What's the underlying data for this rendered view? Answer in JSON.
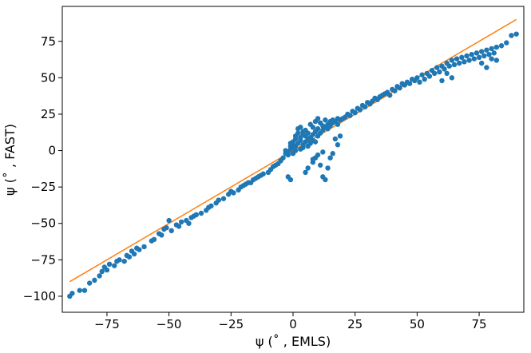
{
  "chart_data": {
    "type": "scatter",
    "xlabel": "ψ (˚ , EMLS)",
    "ylabel": "ψ (˚ , FAST)",
    "xlim": [
      -93,
      93
    ],
    "ylim": [
      -111,
      99
    ],
    "xticks": [
      -75,
      -50,
      -25,
      0,
      25,
      50,
      75
    ],
    "yticks": [
      -100,
      -75,
      -50,
      -25,
      0,
      25,
      50,
      75
    ],
    "grid": false,
    "reference_line": {
      "x": [
        -90,
        90
      ],
      "y": [
        -90,
        90
      ],
      "color": "#ff7f0e"
    },
    "point_color": "#1f77b4",
    "points": [
      [
        -90,
        -100
      ],
      [
        -89,
        -98
      ],
      [
        -86,
        -96
      ],
      [
        -84,
        -96
      ],
      [
        -82,
        -91
      ],
      [
        -80,
        -89
      ],
      [
        -78,
        -86
      ],
      [
        -77,
        -83
      ],
      [
        -76,
        -80
      ],
      [
        -75,
        -82
      ],
      [
        -74,
        -78
      ],
      [
        -72,
        -79
      ],
      [
        -71,
        -76
      ],
      [
        -70,
        -75
      ],
      [
        -68,
        -76
      ],
      [
        -67,
        -72
      ],
      [
        -66,
        -73
      ],
      [
        -65,
        -69
      ],
      [
        -64,
        -71
      ],
      [
        -63,
        -67
      ],
      [
        -62,
        -68
      ],
      [
        -60,
        -66
      ],
      [
        -57,
        -62
      ],
      [
        -56,
        -61
      ],
      [
        -54,
        -57
      ],
      [
        -53,
        -58
      ],
      [
        -52,
        -54
      ],
      [
        -51,
        -53
      ],
      [
        -50,
        -48
      ],
      [
        -49,
        -55
      ],
      [
        -47,
        -51
      ],
      [
        -46,
        -52
      ],
      [
        -45,
        -49
      ],
      [
        -43,
        -48
      ],
      [
        -42,
        -50
      ],
      [
        -41,
        -46
      ],
      [
        -40,
        -45
      ],
      [
        -39,
        -44
      ],
      [
        -37,
        -43
      ],
      [
        -35,
        -41
      ],
      [
        -34,
        -39
      ],
      [
        -33,
        -38
      ],
      [
        -31,
        -36
      ],
      [
        -30,
        -34
      ],
      [
        -28,
        -33
      ],
      [
        -26,
        -30
      ],
      [
        -25,
        -28
      ],
      [
        -24,
        -29
      ],
      [
        -22,
        -27
      ],
      [
        -21,
        -25
      ],
      [
        -20,
        -24
      ],
      [
        -19,
        -23
      ],
      [
        -18,
        -22
      ],
      [
        -17,
        -22
      ],
      [
        -16,
        -20
      ],
      [
        -15,
        -19
      ],
      [
        -14,
        -18
      ],
      [
        -13,
        -17
      ],
      [
        -12,
        -16
      ],
      [
        -10,
        -15
      ],
      [
        -9,
        -13
      ],
      [
        -8,
        -11
      ],
      [
        -7,
        -10
      ],
      [
        -6,
        -9
      ],
      [
        -5,
        -7
      ],
      [
        -4,
        -5
      ],
      [
        -3,
        -2
      ],
      [
        -3,
        0
      ],
      [
        -2,
        -3
      ],
      [
        -2,
        -1
      ],
      [
        -1,
        1
      ],
      [
        -1,
        3
      ],
      [
        -1,
        5
      ],
      [
        0,
        -2
      ],
      [
        0,
        2
      ],
      [
        0,
        4
      ],
      [
        0,
        6
      ],
      [
        1,
        0
      ],
      [
        1,
        3
      ],
      [
        1,
        8
      ],
      [
        1,
        10
      ],
      [
        2,
        5
      ],
      [
        2,
        12
      ],
      [
        2,
        15
      ],
      [
        3,
        1
      ],
      [
        3,
        7
      ],
      [
        3,
        9
      ],
      [
        3,
        16
      ],
      [
        4,
        2
      ],
      [
        4,
        4
      ],
      [
        4,
        11
      ],
      [
        4,
        13
      ],
      [
        5,
        6
      ],
      [
        5,
        10
      ],
      [
        5,
        14
      ],
      [
        6,
        3
      ],
      [
        6,
        8
      ],
      [
        6,
        12
      ],
      [
        7,
        5
      ],
      [
        7,
        9
      ],
      [
        7,
        18
      ],
      [
        8,
        7
      ],
      [
        8,
        11
      ],
      [
        8,
        16
      ],
      [
        9,
        6
      ],
      [
        9,
        13
      ],
      [
        9,
        20
      ],
      [
        10,
        10
      ],
      [
        10,
        15
      ],
      [
        10,
        22
      ],
      [
        11,
        12
      ],
      [
        11,
        19
      ],
      [
        12,
        14
      ],
      [
        12,
        17
      ],
      [
        13,
        16
      ],
      [
        13,
        21
      ],
      [
        14,
        15
      ],
      [
        14,
        18
      ],
      [
        15,
        17
      ],
      [
        15,
        20
      ],
      [
        16,
        19
      ],
      [
        16,
        21
      ],
      [
        17,
        20
      ],
      [
        18,
        18
      ],
      [
        18,
        22
      ],
      [
        19,
        21
      ],
      [
        20,
        22
      ],
      [
        21,
        23
      ],
      [
        22,
        25
      ],
      [
        23,
        24
      ],
      [
        24,
        27
      ],
      [
        25,
        26
      ],
      [
        26,
        29
      ],
      [
        27,
        28
      ],
      [
        28,
        31
      ],
      [
        29,
        30
      ],
      [
        30,
        33
      ],
      [
        31,
        32
      ],
      [
        32,
        34
      ],
      [
        33,
        36
      ],
      [
        34,
        35
      ],
      [
        35,
        37
      ],
      [
        36,
        38
      ],
      [
        37,
        39
      ],
      [
        38,
        40
      ],
      [
        39,
        38
      ],
      [
        40,
        42
      ],
      [
        41,
        41
      ],
      [
        42,
        44
      ],
      [
        43,
        43
      ],
      [
        44,
        46
      ],
      [
        45,
        45
      ],
      [
        46,
        47
      ],
      [
        47,
        46
      ],
      [
        48,
        49
      ],
      [
        49,
        48
      ],
      [
        50,
        50
      ],
      [
        51,
        47
      ],
      [
        52,
        52
      ],
      [
        53,
        49
      ],
      [
        54,
        53
      ],
      [
        55,
        51
      ],
      [
        56,
        55
      ],
      [
        57,
        53
      ],
      [
        58,
        57
      ],
      [
        59,
        54
      ],
      [
        60,
        58
      ],
      [
        61,
        56
      ],
      [
        62,
        60
      ],
      [
        63,
        58
      ],
      [
        64,
        62
      ],
      [
        65,
        59
      ],
      [
        66,
        63
      ],
      [
        67,
        60
      ],
      [
        68,
        64
      ],
      [
        69,
        61
      ],
      [
        70,
        65
      ],
      [
        71,
        62
      ],
      [
        72,
        66
      ],
      [
        73,
        63
      ],
      [
        74,
        67
      ],
      [
        75,
        64
      ],
      [
        76,
        68
      ],
      [
        77,
        65
      ],
      [
        78,
        69
      ],
      [
        79,
        66
      ],
      [
        80,
        70
      ],
      [
        81,
        67
      ],
      [
        82,
        71
      ],
      [
        84,
        72
      ],
      [
        86,
        74
      ],
      [
        88,
        79
      ],
      [
        90,
        80
      ],
      [
        76,
        60
      ],
      [
        78,
        57
      ],
      [
        80,
        63
      ],
      [
        82,
        62
      ],
      [
        64,
        50
      ],
      [
        62,
        53
      ],
      [
        60,
        48
      ],
      [
        -2,
        -18
      ],
      [
        -1,
        -20
      ],
      [
        5,
        -15
      ],
      [
        6,
        -12
      ],
      [
        8,
        -8
      ],
      [
        9,
        -5
      ],
      [
        11,
        -10
      ],
      [
        12,
        -18
      ],
      [
        13,
        -20
      ],
      [
        14,
        -12
      ],
      [
        15,
        -5
      ],
      [
        10,
        -3
      ],
      [
        8,
        -6
      ],
      [
        12,
        -1
      ],
      [
        16,
        -2
      ],
      [
        18,
        4
      ],
      [
        17,
        8
      ],
      [
        19,
        10
      ]
    ]
  }
}
